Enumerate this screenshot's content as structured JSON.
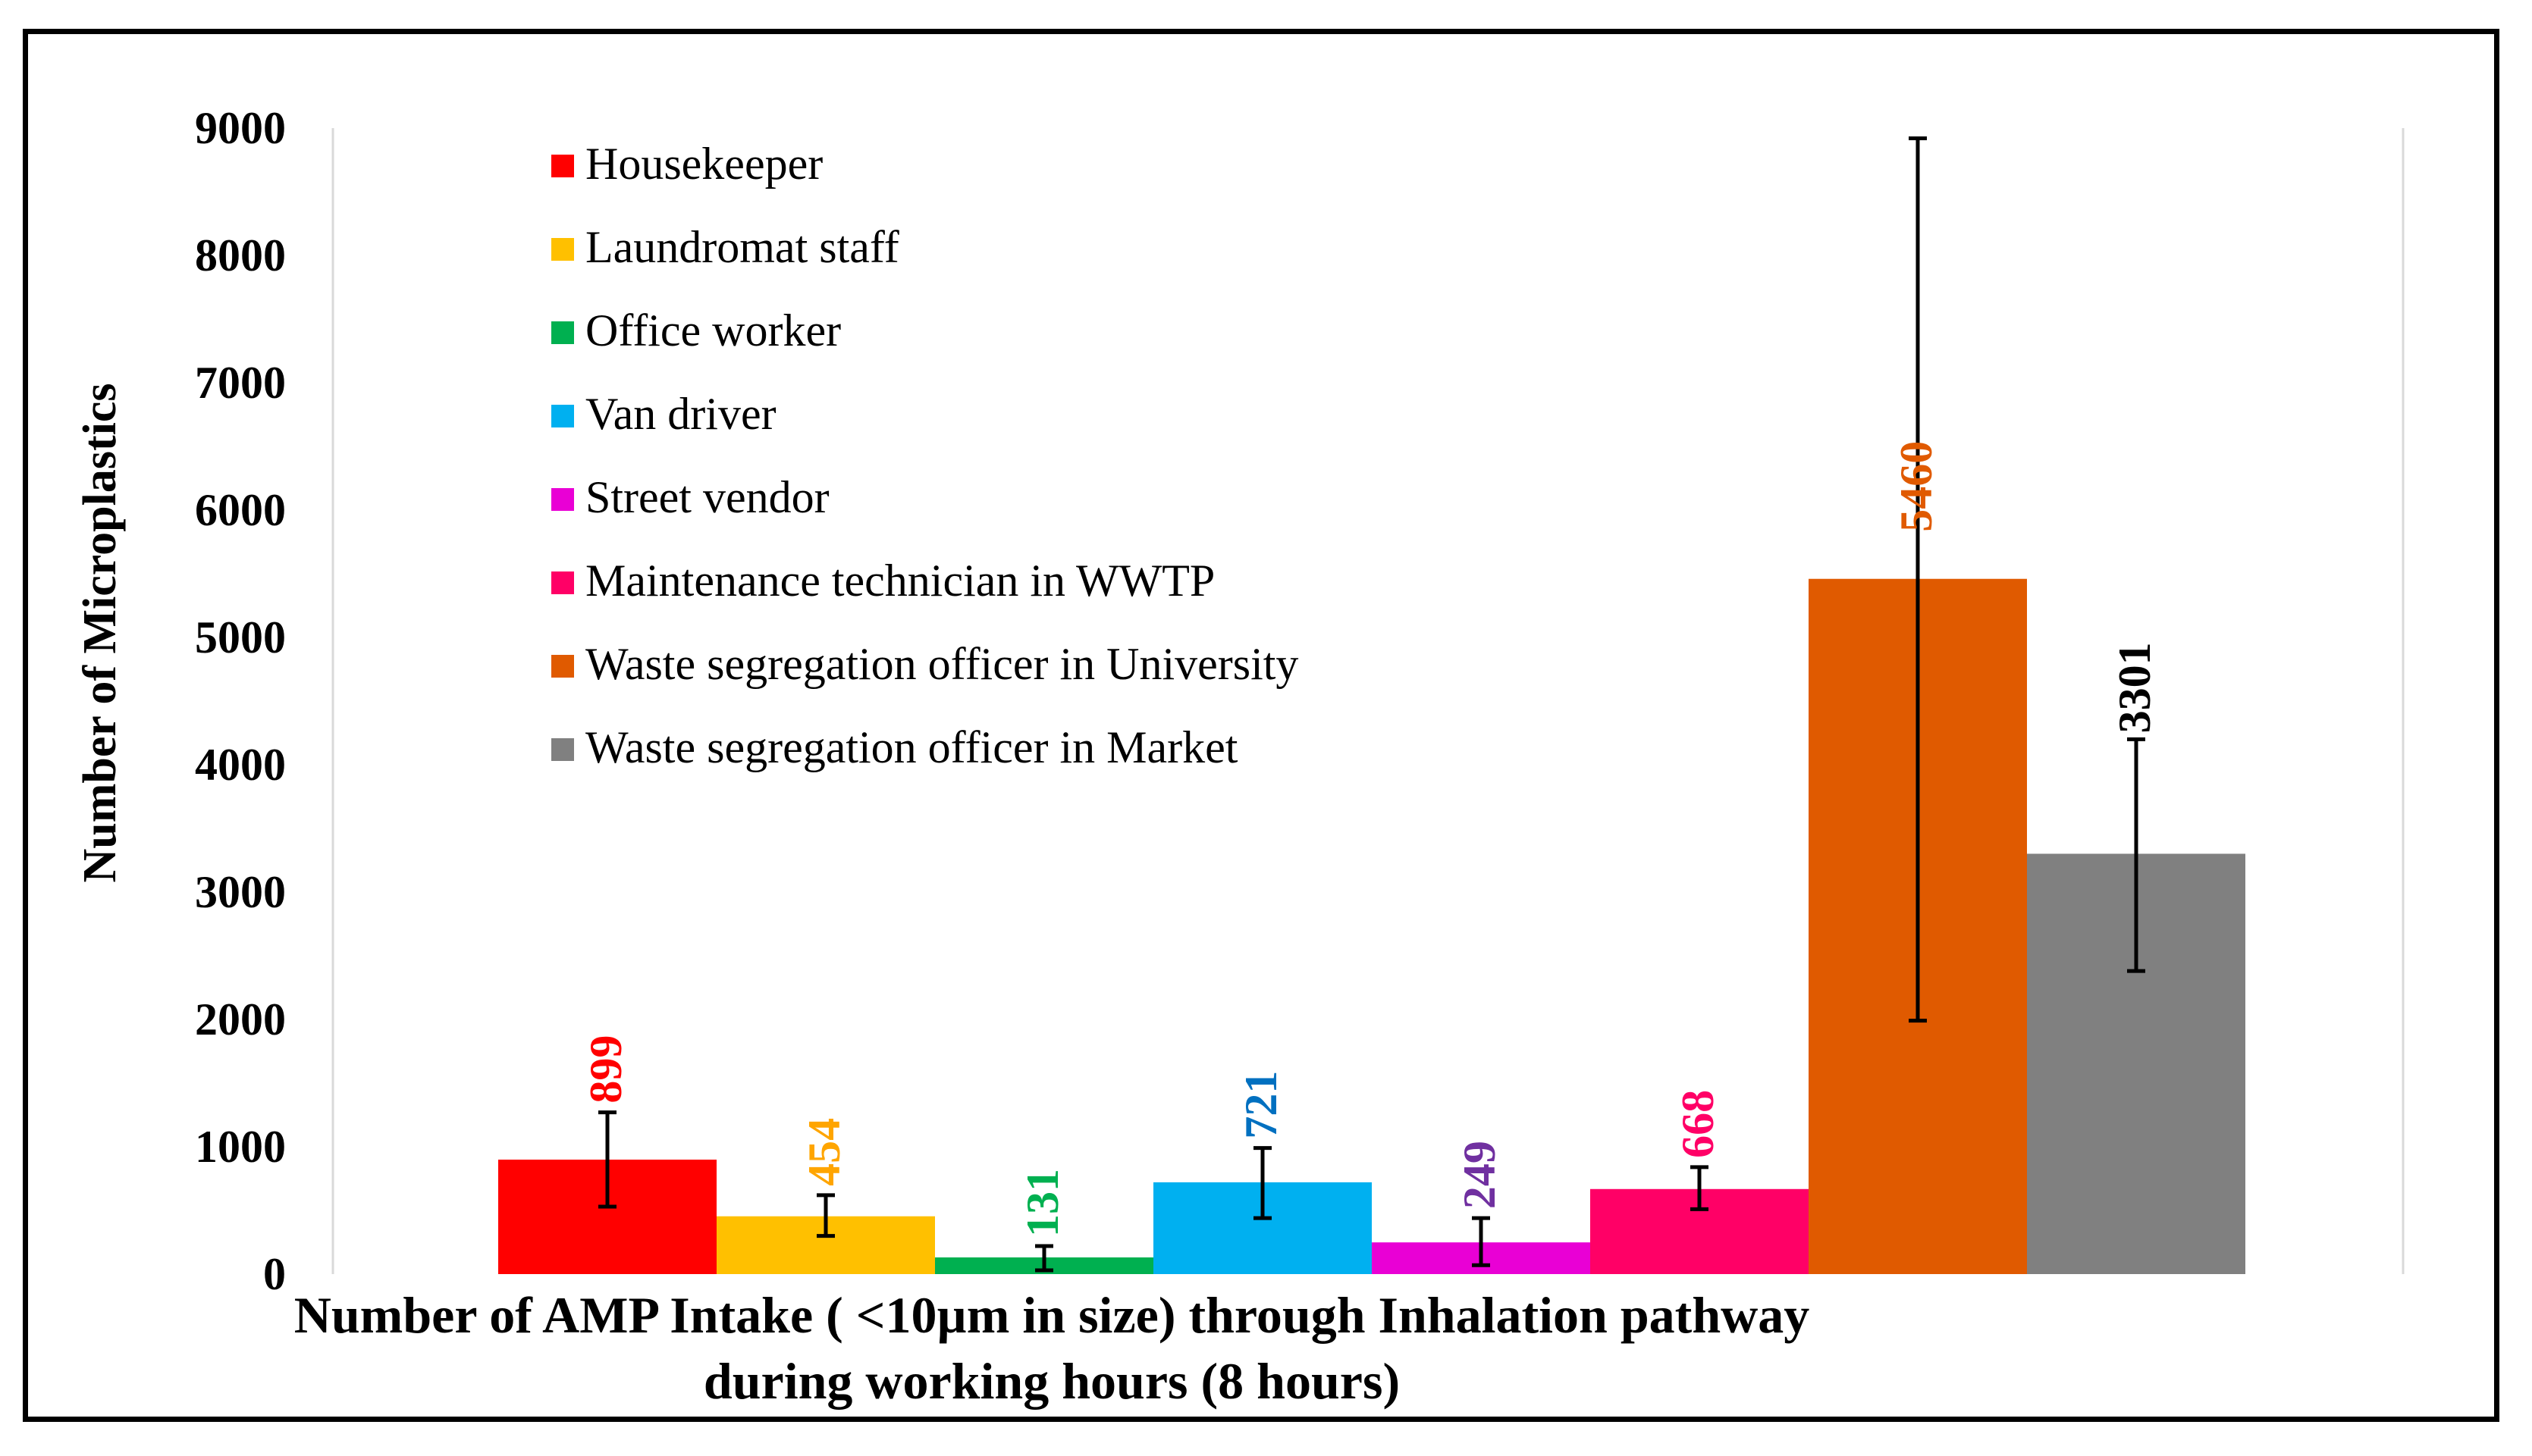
{
  "chart_data": {
    "type": "bar",
    "title": "",
    "xlabel_line1": "Number of AMP Intake ( <10µm in size) through Inhalation pathway",
    "xlabel_line2": "during working hours (8 hours)",
    "ylabel": "Number of  Microplastics",
    "ylim": [
      0,
      9000
    ],
    "yticks": [
      0,
      1000,
      2000,
      3000,
      4000,
      5000,
      6000,
      7000,
      8000,
      9000
    ],
    "grid": false,
    "legend_position": "top-left",
    "categories": [
      "Housekeeper",
      "Laundromat staff",
      "Office worker",
      "Van driver",
      "Street vendor",
      "Maintenance technician in WWTP",
      "Waste segregation officer in University",
      "Waste segregation officer in Market"
    ],
    "values": [
      899,
      454,
      131,
      721,
      249,
      668,
      5460,
      3301
    ],
    "error_low": [
      530,
      300,
      30,
      440,
      70,
      510,
      1990,
      2380
    ],
    "error_high": [
      1270,
      620,
      220,
      990,
      440,
      840,
      8920,
      4200
    ],
    "colors": [
      "#ff0000",
      "#ffc000",
      "#00b050",
      "#00b0f0",
      "#e900d5",
      "#ff0066",
      "#e05a00",
      "#808080"
    ],
    "label_colors": [
      "#ff0000",
      "#ffa500",
      "#00b050",
      "#0070c0",
      "#7030a0",
      "#ff0066",
      "#e05a00",
      "#000000"
    ]
  }
}
